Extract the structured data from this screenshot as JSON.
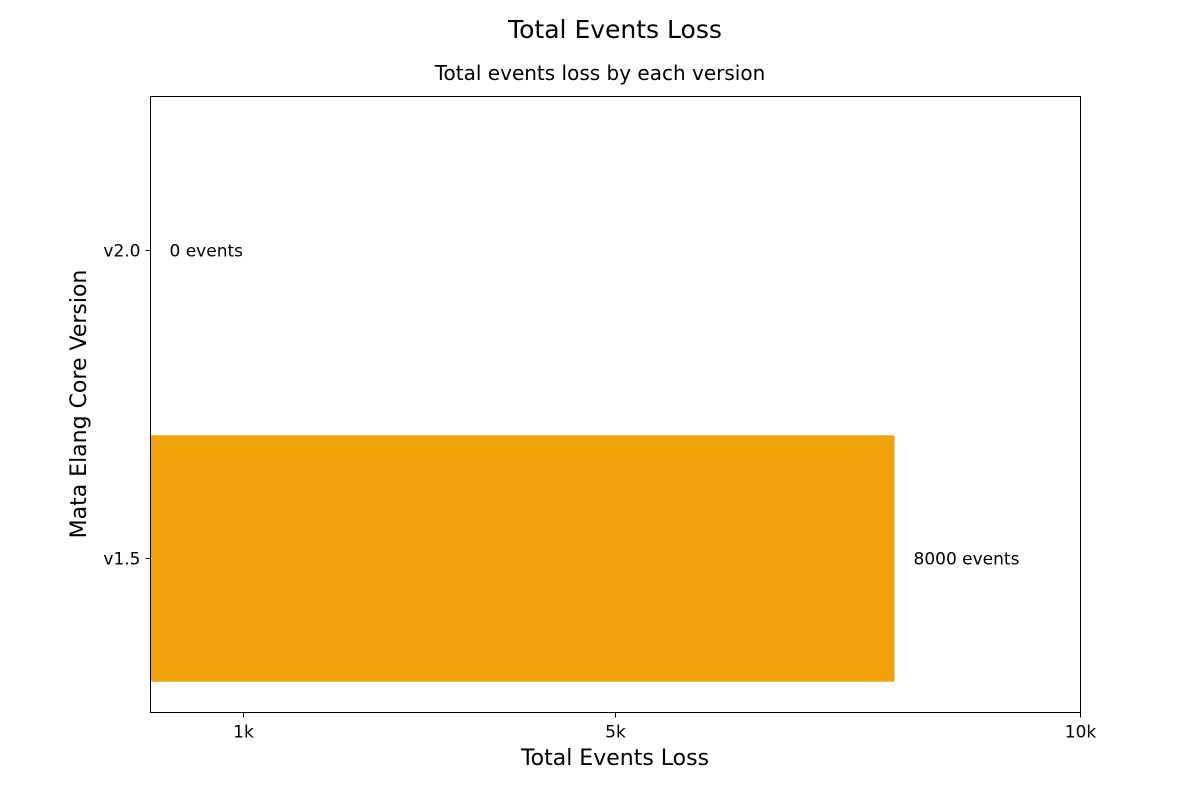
{
  "chart_data": {
    "type": "bar",
    "orientation": "horizontal",
    "title": "Total Events Loss",
    "subtitle": "Total events loss by each version",
    "xlabel": "Total Events Loss",
    "ylabel": "Mata Elang Core Version",
    "categories": [
      "v1.5",
      "v2.0"
    ],
    "values": [
      8000,
      0
    ],
    "data_labels": [
      "8000 events",
      "0 events"
    ],
    "xlim": [
      0,
      10000
    ],
    "x_ticks": [
      {
        "value": 1000,
        "label": "1k"
      },
      {
        "value": 5000,
        "label": "5k"
      },
      {
        "value": 10000,
        "label": "10k"
      }
    ],
    "bar_color": "#F0A30A",
    "grid": false,
    "legend": "none"
  }
}
